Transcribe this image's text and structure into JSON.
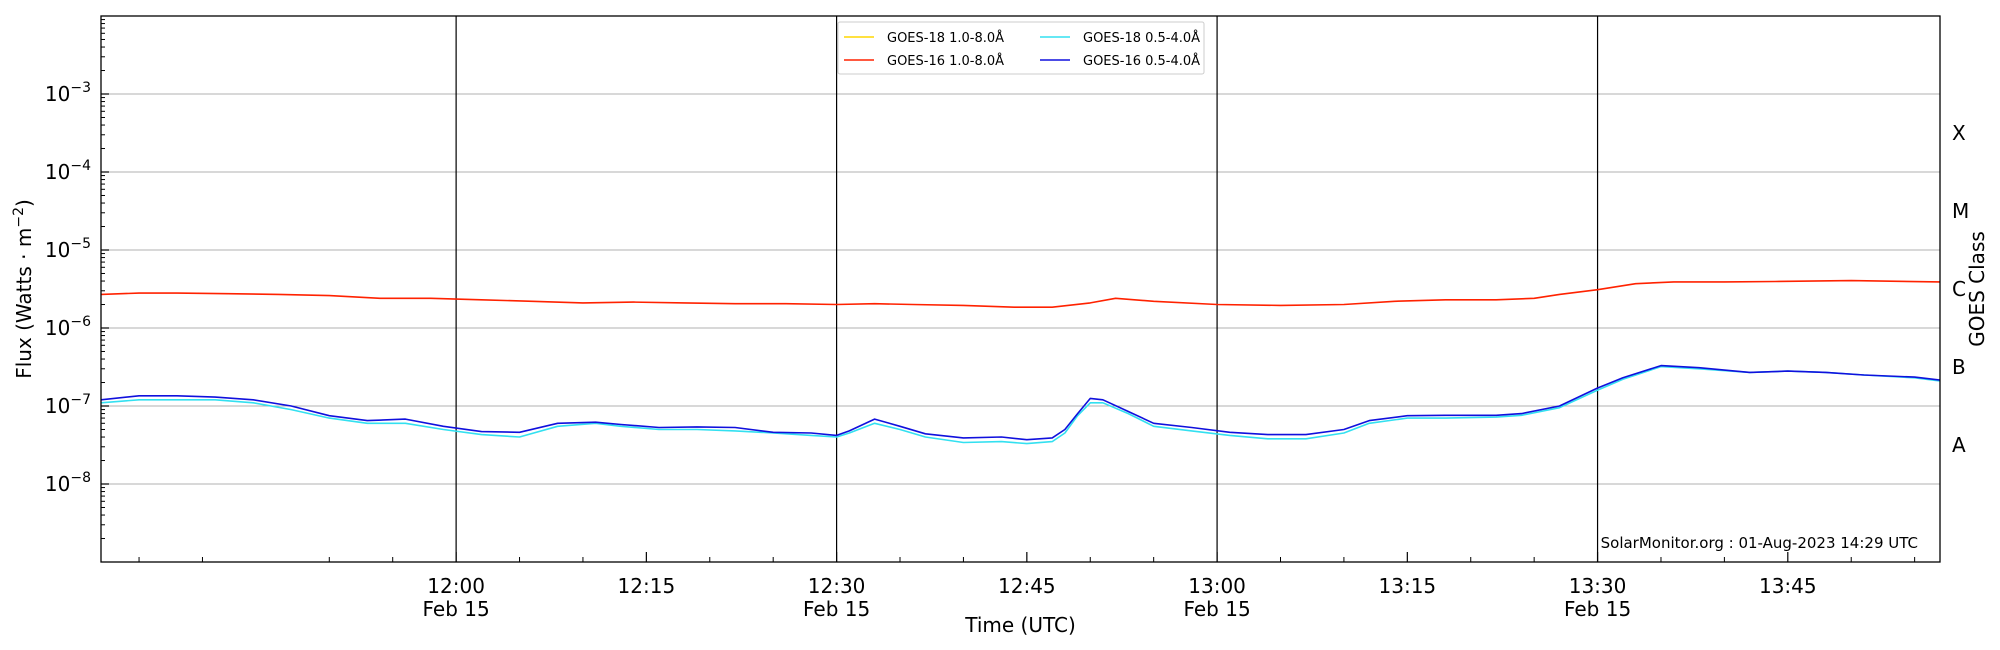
{
  "chart_data": {
    "type": "line",
    "xlabel": "Time (UTC)",
    "ylabel": "Flux (Watts · m",
    "ylabel_sup": "−2",
    "ylabel_close": ")",
    "right_label": "GOES Class",
    "y_scale": "log",
    "ylim": [
      1e-09,
      0.01
    ],
    "xlim": [
      "11:32",
      "13:57"
    ],
    "grid": {
      "horizontal": true,
      "vertical_at_major": true
    },
    "legend_position": "top-center",
    "y_ticks": [
      {
        "value": 1e-08,
        "base": "10",
        "exp": "−8"
      },
      {
        "value": 1e-07,
        "base": "10",
        "exp": "−7"
      },
      {
        "value": 1e-06,
        "base": "10",
        "exp": "−6"
      },
      {
        "value": 1e-05,
        "base": "10",
        "exp": "−5"
      },
      {
        "value": 0.0001,
        "base": "10",
        "exp": "−4"
      },
      {
        "value": 0.001,
        "base": "10",
        "exp": "−3"
      }
    ],
    "x_ticks": [
      {
        "time": "12:00",
        "label": "12:00",
        "sub": "Feb 15",
        "major": true
      },
      {
        "time": "12:15",
        "label": "12:15",
        "sub": "",
        "major": false
      },
      {
        "time": "12:30",
        "label": "12:30",
        "sub": "Feb 15",
        "major": true
      },
      {
        "time": "12:45",
        "label": "12:45",
        "sub": "",
        "major": false
      },
      {
        "time": "13:00",
        "label": "13:00",
        "sub": "Feb 15",
        "major": true
      },
      {
        "time": "13:15",
        "label": "13:15",
        "sub": "",
        "major": false
      },
      {
        "time": "13:30",
        "label": "13:30",
        "sub": "Feb 15",
        "major": true
      },
      {
        "time": "13:45",
        "label": "13:45",
        "sub": "",
        "major": false
      }
    ],
    "goes_classes": [
      {
        "label": "A",
        "value": 3.16e-08
      },
      {
        "label": "B",
        "value": 3.16e-07
      },
      {
        "label": "C",
        "value": 3.16e-06
      },
      {
        "label": "M",
        "value": 3.16e-05
      },
      {
        "label": "X",
        "value": 0.000316
      }
    ],
    "series": [
      {
        "name": "GOES-18 1.0-8.0Å",
        "color": "#ffd700",
        "times": [],
        "values": []
      },
      {
        "name": "GOES-16 1.0-8.0Å",
        "color": "#ff2200",
        "times": [
          "11:32",
          "11:35",
          "11:38",
          "11:42",
          "11:46",
          "11:50",
          "11:54",
          "11:58",
          "12:02",
          "12:06",
          "12:10",
          "12:14",
          "12:18",
          "12:22",
          "12:26",
          "12:30",
          "12:33",
          "12:36",
          "12:40",
          "12:44",
          "12:47",
          "12:50",
          "12:52",
          "12:55",
          "13:00",
          "13:05",
          "13:10",
          "13:14",
          "13:18",
          "13:22",
          "13:25",
          "13:27",
          "13:30",
          "13:33",
          "13:36",
          "13:40",
          "13:44",
          "13:50",
          "13:57"
        ],
        "values": [
          2.7e-06,
          2.8e-06,
          2.8e-06,
          2.75e-06,
          2.7e-06,
          2.6e-06,
          2.4e-06,
          2.4e-06,
          2.3e-06,
          2.2e-06,
          2.1e-06,
          2.15e-06,
          2.1e-06,
          2.05e-06,
          2.05e-06,
          2e-06,
          2.05e-06,
          2e-06,
          1.95e-06,
          1.85e-06,
          1.85e-06,
          2.1e-06,
          2.4e-06,
          2.2e-06,
          2e-06,
          1.95e-06,
          2e-06,
          2.2e-06,
          2.3e-06,
          2.3e-06,
          2.4e-06,
          2.7e-06,
          3.1e-06,
          3.7e-06,
          3.9e-06,
          3.9e-06,
          3.95e-06,
          4.05e-06,
          3.9e-06
        ]
      },
      {
        "name": "GOES-18 0.5-4.0Å",
        "color": "#33e0f0",
        "times": [
          "11:32",
          "11:35",
          "11:38",
          "11:41",
          "11:44",
          "11:47",
          "11:50",
          "11:53",
          "11:56",
          "11:59",
          "12:02",
          "12:05",
          "12:08",
          "12:11",
          "12:13",
          "12:16",
          "12:19",
          "12:22",
          "12:25",
          "12:28",
          "12:30",
          "12:31",
          "12:33",
          "12:35",
          "12:37",
          "12:40",
          "12:43",
          "12:45",
          "12:47",
          "12:48",
          "12:49",
          "12:50",
          "12:51",
          "12:53",
          "12:55",
          "12:58",
          "13:01",
          "13:04",
          "13:07",
          "13:10",
          "13:12",
          "13:15",
          "13:18",
          "13:22",
          "13:24",
          "13:27",
          "13:30",
          "13:32",
          "13:35",
          "13:38",
          "13:42",
          "13:45",
          "13:48",
          "13:51",
          "13:55",
          "13:57"
        ],
        "values": [
          1.1e-07,
          1.2e-07,
          1.2e-07,
          1.2e-07,
          1.1e-07,
          9e-08,
          7e-08,
          6e-08,
          6e-08,
          5e-08,
          4.3e-08,
          4e-08,
          5.5e-08,
          6e-08,
          5.5e-08,
          5e-08,
          5e-08,
          4.8e-08,
          4.5e-08,
          4.2e-08,
          4e-08,
          4.5e-08,
          6e-08,
          5e-08,
          4e-08,
          3.4e-08,
          3.5e-08,
          3.3e-08,
          3.5e-08,
          4.5e-08,
          7.5e-08,
          1.1e-07,
          1.1e-07,
          8e-08,
          5.5e-08,
          4.8e-08,
          4.2e-08,
          3.8e-08,
          3.8e-08,
          4.5e-08,
          6e-08,
          7e-08,
          7e-08,
          7.2e-08,
          7.6e-08,
          9.5e-08,
          1.6e-07,
          2.2e-07,
          3.2e-07,
          3e-07,
          2.7e-07,
          2.8e-07,
          2.7e-07,
          2.5e-07,
          2.3e-07,
          2.1e-07
        ]
      },
      {
        "name": "GOES-16 0.5-4.0Å",
        "color": "#1010dd",
        "times": [
          "11:32",
          "11:35",
          "11:38",
          "11:41",
          "11:44",
          "11:47",
          "11:50",
          "11:53",
          "11:56",
          "11:59",
          "12:02",
          "12:05",
          "12:08",
          "12:11",
          "12:13",
          "12:16",
          "12:19",
          "12:22",
          "12:25",
          "12:28",
          "12:30",
          "12:31",
          "12:33",
          "12:35",
          "12:37",
          "12:40",
          "12:43",
          "12:45",
          "12:47",
          "12:48",
          "12:49",
          "12:50",
          "12:51",
          "12:53",
          "12:55",
          "12:58",
          "13:01",
          "13:04",
          "13:07",
          "13:10",
          "13:12",
          "13:15",
          "13:18",
          "13:22",
          "13:24",
          "13:27",
          "13:30",
          "13:32",
          "13:35",
          "13:38",
          "13:42",
          "13:45",
          "13:48",
          "13:51",
          "13:55",
          "13:57"
        ],
        "values": [
          1.2e-07,
          1.35e-07,
          1.35e-07,
          1.3e-07,
          1.2e-07,
          1e-07,
          7.5e-08,
          6.5e-08,
          6.8e-08,
          5.5e-08,
          4.7e-08,
          4.6e-08,
          6e-08,
          6.2e-08,
          5.8e-08,
          5.3e-08,
          5.4e-08,
          5.3e-08,
          4.6e-08,
          4.5e-08,
          4.2e-08,
          4.8e-08,
          6.8e-08,
          5.5e-08,
          4.4e-08,
          3.9e-08,
          4e-08,
          3.7e-08,
          3.9e-08,
          5e-08,
          8e-08,
          1.25e-07,
          1.2e-07,
          8.5e-08,
          6e-08,
          5.3e-08,
          4.6e-08,
          4.3e-08,
          4.3e-08,
          5e-08,
          6.5e-08,
          7.5e-08,
          7.6e-08,
          7.6e-08,
          8e-08,
          1e-07,
          1.7e-07,
          2.3e-07,
          3.3e-07,
          3.1e-07,
          2.7e-07,
          2.8e-07,
          2.7e-07,
          2.5e-07,
          2.35e-07,
          2.15e-07
        ]
      }
    ],
    "credit": "SolarMonitor.org : 01-Aug-2023 14:29 UTC"
  }
}
